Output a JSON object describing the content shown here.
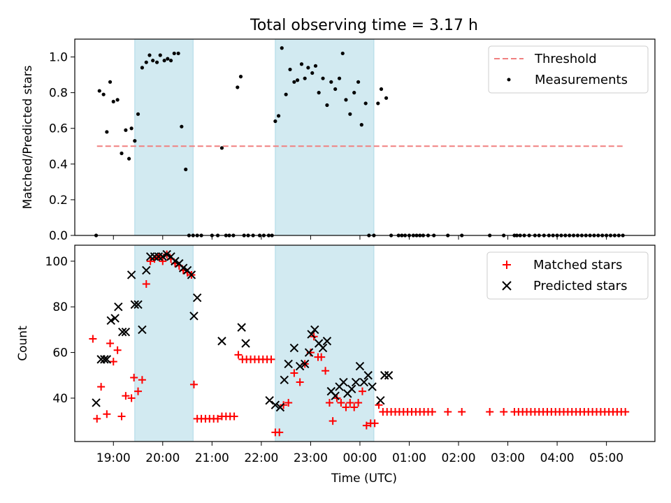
{
  "title": "Total observing time = 3.17 h",
  "xlabel": "Time (UTC)",
  "x_ticks": [
    "19:00",
    "20:00",
    "21:00",
    "22:00",
    "23:00",
    "00:00",
    "01:00",
    "02:00",
    "03:00",
    "04:00",
    "05:00"
  ],
  "colors": {
    "threshold": "#f08080",
    "measurements": "#000000",
    "matched": "#ff0000",
    "predicted": "#000000",
    "shade": "#add8e6"
  },
  "chart_data": [
    {
      "type": "scatter",
      "ylabel": "Matched/Predicted stars",
      "xlim": [
        "18:13",
        "05:59"
      ],
      "ylim": [
        0,
        1.1
      ],
      "y_ticks": [
        "0.0",
        "0.2",
        "0.4",
        "0.6",
        "0.8",
        "1.0"
      ],
      "grid": false,
      "legend_position": "top-right",
      "shaded_intervals": [
        [
          "19:26",
          "20:37"
        ],
        [
          "22:17",
          "00:17"
        ]
      ],
      "series": [
        {
          "name": "Threshold",
          "kind": "dashed-line",
          "x": [
            "18:40",
            "05:22"
          ],
          "y": [
            0.5,
            0.5
          ]
        },
        {
          "name": "Measurements",
          "kind": "points",
          "x": [
            "18:39",
            "18:43",
            "18:48",
            "18:52",
            "18:56",
            "19:00",
            "19:05",
            "19:10",
            "19:15",
            "19:19",
            "19:22",
            "19:26",
            "19:30",
            "19:35",
            "19:40",
            "19:44",
            "19:48",
            "19:53",
            "19:57",
            "20:02",
            "20:06",
            "20:10",
            "20:14",
            "20:19",
            "20:23",
            "20:28",
            "20:32",
            "20:37",
            "20:42",
            "20:47",
            "21:00",
            "21:07",
            "21:12",
            "21:17",
            "21:21",
            "21:26",
            "21:31",
            "21:35",
            "21:39",
            "21:44",
            "21:50",
            "21:58",
            "22:03",
            "22:09",
            "22:13",
            "22:17",
            "22:21",
            "22:25",
            "22:30",
            "22:35",
            "22:40",
            "22:44",
            "22:49",
            "22:53",
            "22:57",
            "23:02",
            "23:06",
            "23:10",
            "23:15",
            "23:20",
            "23:25",
            "23:30",
            "23:35",
            "23:39",
            "23:43",
            "23:48",
            "23:53",
            "23:58",
            "00:02",
            "00:07",
            "00:11",
            "00:17",
            "00:22",
            "00:26",
            "00:32",
            "00:38",
            "00:47",
            "00:51",
            "00:55",
            "01:00",
            "01:05",
            "01:09",
            "01:13",
            "01:17",
            "01:23",
            "01:30",
            "01:47",
            "02:04",
            "02:38",
            "02:55",
            "03:08",
            "03:11",
            "03:15",
            "03:20",
            "03:26",
            "03:33",
            "03:38",
            "03:44",
            "03:50",
            "03:55",
            "04:00",
            "04:05",
            "04:10",
            "04:15",
            "04:20",
            "04:25",
            "04:30",
            "04:35",
            "04:40",
            "04:45",
            "04:50",
            "04:55",
            "05:00",
            "05:05",
            "05:10",
            "05:15",
            "05:20"
          ],
          "y": [
            0.0,
            0.81,
            0.79,
            0.58,
            0.86,
            0.75,
            0.76,
            0.46,
            0.59,
            0.43,
            0.6,
            0.53,
            0.68,
            0.94,
            0.97,
            1.01,
            0.98,
            0.97,
            1.01,
            0.98,
            0.99,
            0.98,
            1.02,
            1.02,
            0.61,
            0.37,
            0.0,
            0.0,
            0.0,
            0.0,
            0.0,
            0.0,
            0.49,
            0.0,
            0.0,
            0.0,
            0.83,
            0.89,
            0.0,
            0.0,
            0.0,
            0.0,
            0.0,
            0.0,
            0.0,
            0.64,
            0.67,
            1.05,
            0.79,
            0.93,
            0.86,
            0.87,
            0.96,
            0.88,
            0.94,
            0.91,
            0.95,
            0.8,
            0.88,
            0.73,
            0.86,
            0.82,
            0.88,
            1.02,
            0.76,
            0.68,
            0.8,
            0.86,
            0.62,
            0.74,
            0.0,
            0.0,
            0.74,
            0.82,
            0.77,
            0.0,
            0.0,
            0.0,
            0.0,
            0.0,
            0.0,
            0.0,
            0.0,
            0.0,
            0.0,
            0.0,
            0.0,
            0.0,
            0.0,
            0.0,
            0.0,
            0.0,
            0.0,
            0.0,
            0.0,
            0.0,
            0.0,
            0.0,
            0.0,
            0.0,
            0.0,
            0.0,
            0.0,
            0.0,
            0.0,
            0.0,
            0.0,
            0.0,
            0.0,
            0.0,
            0.0,
            0.0,
            0.0,
            0.0,
            0.0,
            0.0,
            0.0
          ]
        }
      ]
    },
    {
      "type": "scatter",
      "ylabel": "Count",
      "xlim": [
        "18:13",
        "05:59"
      ],
      "ylim": [
        21,
        107
      ],
      "y_ticks": [
        "40",
        "60",
        "80",
        "100"
      ],
      "grid": false,
      "legend_position": "top-right",
      "shaded_intervals": [
        [
          "19:26",
          "20:37"
        ],
        [
          "22:17",
          "00:17"
        ]
      ],
      "series": [
        {
          "name": "Matched stars",
          "marker": "plus",
          "x": [
            "18:35",
            "18:40",
            "18:45",
            "18:52",
            "18:56",
            "19:00",
            "19:05",
            "19:10",
            "19:15",
            "19:22",
            "19:25",
            "19:30",
            "19:35",
            "19:40",
            "19:45",
            "19:50",
            "19:55",
            "20:00",
            "20:05",
            "20:10",
            "20:15",
            "20:20",
            "20:25",
            "20:30",
            "20:35",
            "20:38",
            "20:42",
            "20:47",
            "20:52",
            "20:57",
            "21:02",
            "21:07",
            "21:12",
            "21:17",
            "21:22",
            "21:27",
            "21:32",
            "21:37",
            "21:42",
            "21:47",
            "21:52",
            "21:57",
            "22:02",
            "22:07",
            "22:12",
            "22:17",
            "22:22",
            "22:27",
            "22:33",
            "22:40",
            "22:47",
            "22:53",
            "23:00",
            "23:04",
            "23:09",
            "23:13",
            "23:18",
            "23:23",
            "23:27",
            "23:32",
            "23:37",
            "23:43",
            "23:48",
            "23:53",
            "23:58",
            "00:03",
            "00:08",
            "00:13",
            "00:18",
            "00:23",
            "00:28",
            "00:33",
            "00:38",
            "00:43",
            "00:48",
            "00:53",
            "00:58",
            "01:03",
            "01:08",
            "01:13",
            "01:18",
            "01:23",
            "01:28",
            "01:47",
            "02:04",
            "02:38",
            "02:55",
            "03:08",
            "03:13",
            "03:18",
            "03:23",
            "03:28",
            "03:33",
            "03:38",
            "03:43",
            "03:48",
            "03:53",
            "03:58",
            "04:03",
            "04:08",
            "04:13",
            "04:18",
            "04:23",
            "04:28",
            "04:33",
            "04:38",
            "04:43",
            "04:48",
            "04:53",
            "04:58",
            "05:03",
            "05:08",
            "05:13",
            "05:18",
            "05:23"
          ],
          "y": [
            66,
            31,
            45,
            33,
            64,
            56,
            61,
            32,
            41,
            40,
            49,
            43,
            48,
            90,
            100,
            101,
            102,
            100,
            103,
            101,
            99,
            98,
            96,
            95,
            94,
            46,
            31,
            31,
            31,
            31,
            31,
            31,
            32,
            32,
            32,
            32,
            59,
            57,
            57,
            57,
            57,
            57,
            57,
            57,
            57,
            25,
            25,
            37,
            38,
            51,
            47,
            55,
            60,
            67,
            58,
            58,
            52,
            38,
            30,
            40,
            38,
            36,
            38,
            36,
            38,
            43,
            28,
            29,
            29,
            37,
            34,
            34,
            34,
            34,
            34,
            34,
            34,
            34,
            34,
            34,
            34,
            34,
            34,
            34,
            34,
            34,
            34,
            34,
            34,
            34,
            34,
            34,
            34,
            34,
            34,
            34,
            34,
            34,
            34,
            34,
            34,
            34,
            34,
            34,
            34,
            34,
            34,
            34,
            34,
            34,
            34,
            34,
            34,
            34,
            34
          ]
        },
        {
          "name": "Predicted stars",
          "marker": "x",
          "x": [
            "18:39",
            "18:45",
            "18:49",
            "18:52",
            "18:57",
            "19:02",
            "19:06",
            "19:11",
            "19:15",
            "19:22",
            "19:26",
            "19:30",
            "19:35",
            "19:40",
            "19:45",
            "19:50",
            "19:55",
            "20:00",
            "20:05",
            "20:10",
            "20:15",
            "20:20",
            "20:25",
            "20:30",
            "20:35",
            "20:38",
            "20:42",
            "21:12",
            "21:36",
            "21:41",
            "22:10",
            "22:17",
            "22:23",
            "22:28",
            "22:33",
            "22:40",
            "22:47",
            "22:53",
            "22:58",
            "23:01",
            "23:05",
            "23:10",
            "23:15",
            "23:20",
            "23:25",
            "23:30",
            "23:35",
            "23:40",
            "23:45",
            "23:50",
            "23:55",
            "00:00",
            "00:05",
            "00:10",
            "00:15",
            "00:25",
            "00:30",
            "00:35"
          ],
          "y": [
            38,
            57,
            57,
            57,
            74,
            75,
            80,
            69,
            69,
            94,
            81,
            81,
            70,
            96,
            102,
            102,
            102,
            102,
            103,
            102,
            100,
            99,
            97,
            96,
            94,
            76,
            84,
            65,
            71,
            64,
            39,
            37,
            36,
            48,
            55,
            62,
            54,
            55,
            60,
            68,
            70,
            64,
            62,
            65,
            43,
            41,
            45,
            47,
            42,
            44,
            47,
            54,
            47,
            50,
            45,
            39,
            50,
            50
          ]
        }
      ]
    }
  ]
}
